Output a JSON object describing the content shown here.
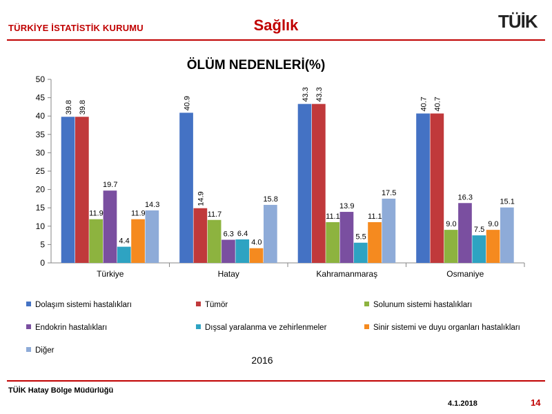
{
  "header": {
    "org": "TÜRKİYE İSTATİSTİK KURUMU",
    "title": "Sağlık",
    "logo_text": "TÜİK"
  },
  "footer": {
    "org": "TÜİK Hatay Bölge Müdürlüğü",
    "date": "4.1.2018",
    "page": "14"
  },
  "chart_data": {
    "type": "bar",
    "title": "ÖLÜM NEDENLERİ(%)",
    "subtitle": "2016",
    "categories": [
      "Türkiye",
      "Hatay",
      "Kahramanmaraş",
      "Osmaniye"
    ],
    "ylim": [
      0,
      50
    ],
    "yticks": [
      0,
      5,
      10,
      15,
      20,
      25,
      30,
      35,
      40,
      45,
      50
    ],
    "grid": false,
    "legend_position": "bottom",
    "series": [
      {
        "name": "Dolaşım sistemi hastalıkları",
        "color": "#4472c4",
        "values": [
          39.8,
          40.9,
          43.3,
          40.7
        ],
        "labels": [
          "39.8",
          "40.9",
          "43.3",
          "40.7"
        ],
        "rotated": true
      },
      {
        "name": "Tümör",
        "color": "#c0393b",
        "values": [
          39.8,
          14.9,
          43.3,
          40.7
        ],
        "labels": [
          "39.8",
          "14.9",
          "43.3",
          "40.7"
        ],
        "rotated": true
      },
      {
        "name": "Solunum sistemi hastalıkları",
        "color": "#8db33f",
        "values": [
          11.9,
          11.7,
          11.1,
          9.0
        ],
        "labels": [
          "11.9",
          "11.7",
          "11.1",
          "9.0"
        ]
      },
      {
        "name": "Endokrin hastalıkları",
        "color": "#7a4fa0",
        "values": [
          19.7,
          6.3,
          13.9,
          16.3
        ],
        "labels": [
          "19.7",
          "6.3",
          "13.9",
          "16.3"
        ]
      },
      {
        "name": "Dışsal yaralanma ve zehirlenmeler",
        "color": "#2ea3c2",
        "values": [
          4.4,
          6.4,
          5.5,
          7.5
        ],
        "labels": [
          "4.4",
          "6.4",
          "5.5",
          "7.5"
        ]
      },
      {
        "name": "Sinir sistemi ve duyu organları hastalıkları",
        "color": "#f58a1f",
        "values": [
          11.9,
          4.0,
          11.1,
          9.0
        ],
        "labels": [
          "11.9",
          "4.0",
          "11.1",
          "9.0"
        ]
      },
      {
        "name": "Diğer",
        "color": "#8eabd8",
        "values": [
          14.3,
          15.8,
          17.5,
          15.1
        ],
        "labels": [
          "14.3",
          "15.8",
          "17.5",
          "15.1"
        ]
      }
    ]
  }
}
